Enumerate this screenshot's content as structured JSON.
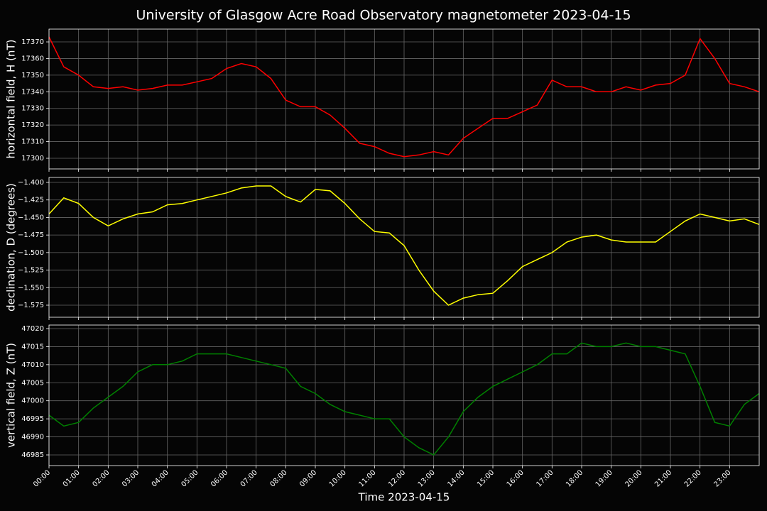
{
  "chart_data": [
    {
      "type": "line",
      "title": "University of Glasgow Acre Road Observatory magnetometer 2023-04-15",
      "ylabel": "horizontal field, H (nT)",
      "x": [
        "00:00",
        "00:30",
        "01:00",
        "01:30",
        "02:00",
        "02:30",
        "03:00",
        "03:30",
        "04:00",
        "04:30",
        "05:00",
        "05:30",
        "06:00",
        "06:30",
        "07:00",
        "07:30",
        "08:00",
        "08:30",
        "09:00",
        "09:30",
        "10:00",
        "10:30",
        "11:00",
        "11:30",
        "12:00",
        "12:30",
        "13:00",
        "13:30",
        "14:00",
        "14:30",
        "15:00",
        "15:30",
        "16:00",
        "16:30",
        "17:00",
        "17:30",
        "18:00",
        "18:30",
        "19:00",
        "19:30",
        "20:00",
        "20:30",
        "21:00",
        "21:30",
        "22:00",
        "22:30",
        "23:00",
        "23:30",
        "24:00"
      ],
      "series": [
        {
          "name": "H",
          "color": "#ff0000",
          "values": [
            17373,
            17355,
            17350,
            17343,
            17342,
            17343,
            17341,
            17342,
            17344,
            17344,
            17346,
            17348,
            17354,
            17357,
            17355,
            17348,
            17335,
            17331,
            17331,
            17326,
            17318,
            17309,
            17307,
            17303,
            17301,
            17302,
            17304,
            17302,
            17312,
            17318,
            17324,
            17324,
            17328,
            17332,
            17347,
            17343,
            17343,
            17340,
            17340,
            17343,
            17341,
            17344,
            17345,
            17350,
            17372,
            17360,
            17345,
            17343,
            17340
          ]
        }
      ],
      "xlim": [
        "00:00",
        "24:00"
      ],
      "xticks": [
        "00:00",
        "01:00",
        "02:00",
        "03:00",
        "04:00",
        "05:00",
        "06:00",
        "07:00",
        "08:00",
        "09:00",
        "10:00",
        "11:00",
        "12:00",
        "13:00",
        "14:00",
        "15:00",
        "16:00",
        "17:00",
        "18:00",
        "19:00",
        "20:00",
        "21:00",
        "22:00",
        "23:00"
      ],
      "ylim": [
        17293.6,
        17377.7
      ],
      "yticks": [
        17300,
        17310,
        17320,
        17330,
        17340,
        17350,
        17360,
        17370
      ],
      "grid": true
    },
    {
      "type": "line",
      "ylabel": "declination, D (degrees)",
      "x": [
        "00:00",
        "00:30",
        "01:00",
        "01:30",
        "02:00",
        "02:30",
        "03:00",
        "03:30",
        "04:00",
        "04:30",
        "05:00",
        "05:30",
        "06:00",
        "06:30",
        "07:00",
        "07:30",
        "08:00",
        "08:30",
        "09:00",
        "09:30",
        "10:00",
        "10:30",
        "11:00",
        "11:30",
        "12:00",
        "12:30",
        "13:00",
        "13:30",
        "14:00",
        "14:30",
        "15:00",
        "15:30",
        "16:00",
        "16:30",
        "17:00",
        "17:30",
        "18:00",
        "18:30",
        "19:00",
        "19:30",
        "20:00",
        "20:30",
        "21:00",
        "21:30",
        "22:00",
        "22:30",
        "23:00",
        "23:30",
        "24:00"
      ],
      "series": [
        {
          "name": "D",
          "color": "#ffff00",
          "values": [
            -1.445,
            -1.422,
            -1.43,
            -1.45,
            -1.462,
            -1.452,
            -1.445,
            -1.442,
            -1.432,
            -1.43,
            -1.425,
            -1.42,
            -1.415,
            -1.408,
            -1.405,
            -1.405,
            -1.42,
            -1.428,
            -1.41,
            -1.412,
            -1.43,
            -1.452,
            -1.47,
            -1.472,
            -1.49,
            -1.525,
            -1.555,
            -1.575,
            -1.565,
            -1.56,
            -1.558,
            -1.54,
            -1.52,
            -1.51,
            -1.5,
            -1.485,
            -1.478,
            -1.475,
            -1.482,
            -1.485,
            -1.485,
            -1.485,
            -1.47,
            -1.455,
            -1.445,
            -1.45,
            -1.455,
            -1.452,
            -1.46
          ]
        }
      ],
      "xlim": [
        "00:00",
        "24:00"
      ],
      "xticks": [
        "00:00",
        "01:00",
        "02:00",
        "03:00",
        "04:00",
        "05:00",
        "06:00",
        "07:00",
        "08:00",
        "09:00",
        "10:00",
        "11:00",
        "12:00",
        "13:00",
        "14:00",
        "15:00",
        "16:00",
        "17:00",
        "18:00",
        "19:00",
        "20:00",
        "21:00",
        "22:00",
        "23:00"
      ],
      "ylim": [
        -1.5922,
        -1.3929
      ],
      "yticks": [
        {
          "value": -1.575,
          "label": "−1.575"
        },
        {
          "value": -1.55,
          "label": "−1.550"
        },
        {
          "value": -1.525,
          "label": "−1.525"
        },
        {
          "value": -1.5,
          "label": "−1.500"
        },
        {
          "value": -1.475,
          "label": "−1.475"
        },
        {
          "value": -1.45,
          "label": "−1.450"
        },
        {
          "value": -1.425,
          "label": "−1.425"
        },
        {
          "value": -1.4,
          "label": "−1.400"
        }
      ],
      "grid": true
    },
    {
      "type": "line",
      "ylabel": "vertical field, Z (nT)",
      "xlabel": "Time 2023-04-15",
      "x": [
        "00:00",
        "00:30",
        "01:00",
        "01:30",
        "02:00",
        "02:30",
        "03:00",
        "03:30",
        "04:00",
        "04:30",
        "05:00",
        "05:30",
        "06:00",
        "06:30",
        "07:00",
        "07:30",
        "08:00",
        "08:30",
        "09:00",
        "09:30",
        "10:00",
        "10:30",
        "11:00",
        "11:30",
        "12:00",
        "12:30",
        "13:00",
        "13:30",
        "14:00",
        "14:30",
        "15:00",
        "15:30",
        "16:00",
        "16:30",
        "17:00",
        "17:30",
        "18:00",
        "18:30",
        "19:00",
        "19:30",
        "20:00",
        "20:30",
        "21:00",
        "21:30",
        "22:00",
        "22:30",
        "23:00",
        "23:30",
        "24:00"
      ],
      "series": [
        {
          "name": "Z",
          "color": "#008000",
          "values": [
            46996,
            46993,
            46994,
            46998,
            47001,
            47004,
            47008,
            47010,
            47010,
            47011,
            47013,
            47013,
            47013,
            47012,
            47011,
            47010,
            47009,
            47004,
            47002,
            46999,
            46997,
            46996,
            46995,
            46995,
            46990,
            46987,
            46985,
            46990,
            46997,
            47001,
            47004,
            47006,
            47008,
            47010,
            47013,
            47013,
            47016,
            47015,
            47015,
            47016,
            47015,
            47015,
            47014,
            47013,
            47004,
            46994,
            46993,
            46999,
            47002
          ]
        }
      ],
      "xlim": [
        "00:00",
        "24:00"
      ],
      "xticks": [
        "00:00",
        "01:00",
        "02:00",
        "03:00",
        "04:00",
        "05:00",
        "06:00",
        "07:00",
        "08:00",
        "09:00",
        "10:00",
        "11:00",
        "12:00",
        "13:00",
        "14:00",
        "15:00",
        "16:00",
        "17:00",
        "18:00",
        "19:00",
        "20:00",
        "21:00",
        "22:00",
        "23:00"
      ],
      "ylim": [
        46982.05,
        47020.98
      ],
      "yticks": [
        46985,
        46990,
        46995,
        47000,
        47005,
        47010,
        47015,
        47020
      ],
      "grid": true
    }
  ]
}
